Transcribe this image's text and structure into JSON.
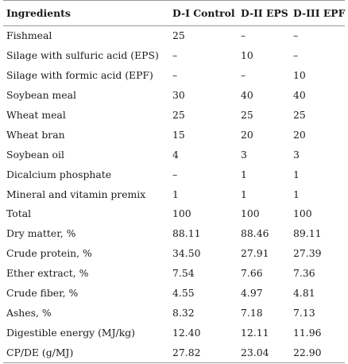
{
  "table": {
    "headers": [
      "Ingredients",
      "D-I Control",
      "D-II EPS",
      "D-III EPF"
    ],
    "rows": [
      [
        "Fishmeal",
        "25",
        "–",
        "–"
      ],
      [
        "Silage with sulfuric acid (EPS)",
        "–",
        "10",
        "–"
      ],
      [
        "Silage with formic acid (EPF)",
        "–",
        "–",
        "10"
      ],
      [
        "Soybean meal",
        "30",
        "40",
        "40"
      ],
      [
        "Wheat meal",
        "25",
        "25",
        "25"
      ],
      [
        "Wheat bran",
        "15",
        "20",
        "20"
      ],
      [
        "Soybean oil",
        "4",
        "3",
        "3"
      ],
      [
        "Dicalcium phosphate",
        "–",
        "1",
        "1"
      ],
      [
        "Mineral and vitamin premix",
        "1",
        "1",
        "1"
      ],
      [
        "Total",
        "100",
        "100",
        "100"
      ],
      [
        "Dry matter, %",
        "88.11",
        "88.46",
        "89.11"
      ],
      [
        "Crude protein, %",
        "34.50",
        "27.91",
        "27.39"
      ],
      [
        "Ether extract, %",
        "7.54",
        "7.66",
        "7.36"
      ],
      [
        "Crude fiber, %",
        "4.55",
        "4.97",
        "4.81"
      ],
      [
        "Ashes, %",
        "8.32",
        "7.18",
        "7.13"
      ],
      [
        "Digestible energy (MJ/kg)",
        "12.40",
        "12.11",
        "11.96"
      ],
      [
        "CP/DE (g/MJ)",
        "27.82",
        "23.04",
        "22.90"
      ]
    ]
  }
}
